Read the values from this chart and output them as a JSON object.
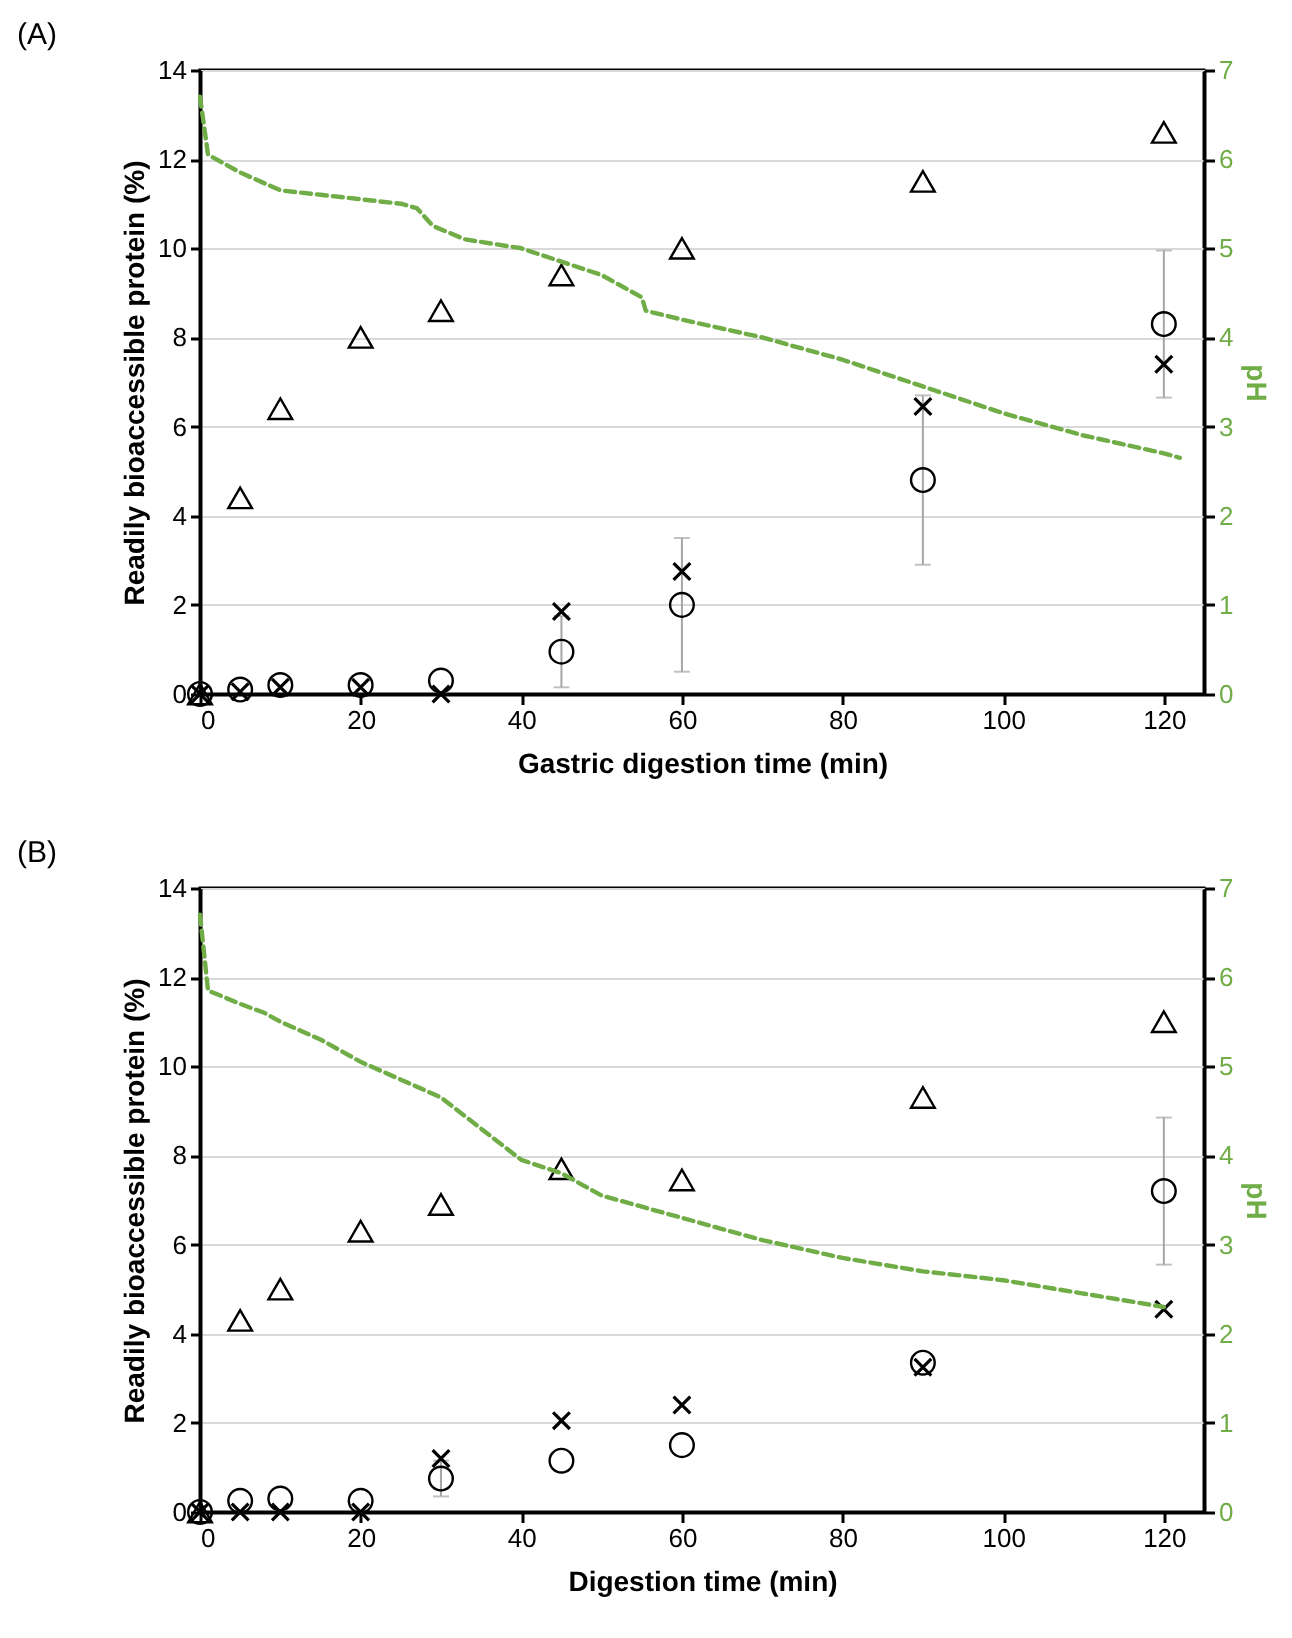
{
  "chart_data": [
    {
      "type": "scatter",
      "title": "(A)",
      "xlabel": "Gastric digestion time (min)",
      "ylabel": "Readily bioaccessible protein (%)",
      "y2label": "pH",
      "xlim": [
        0,
        125
      ],
      "xticks": [
        0,
        20,
        40,
        60,
        80,
        100,
        120
      ],
      "ylim": [
        0,
        14
      ],
      "yticks": [
        0,
        2,
        4,
        6,
        8,
        10,
        12,
        14
      ],
      "y2lim": [
        0,
        7
      ],
      "y2ticks": [
        0,
        1,
        2,
        3,
        4,
        5,
        6,
        7
      ],
      "grid": "y",
      "series": [
        {
          "marker": "triangle",
          "color": "#000000",
          "x": [
            0,
            5,
            10,
            20,
            30,
            45,
            60,
            90,
            120
          ],
          "values": [
            0,
            4.4,
            6.4,
            8.0,
            8.6,
            9.4,
            10.0,
            11.5,
            12.6
          ]
        },
        {
          "marker": "circle",
          "color": "#000000",
          "x": [
            0,
            5,
            10,
            20,
            30,
            45,
            60,
            90,
            120
          ],
          "values": [
            0,
            0.1,
            0.2,
            0.2,
            0.3,
            0.95,
            2.0,
            4.8,
            8.3
          ],
          "errors": [
            null,
            null,
            null,
            null,
            null,
            0.8,
            1.5,
            1.9,
            1.65
          ]
        },
        {
          "marker": "cross",
          "color": "#000000",
          "x": [
            0,
            5,
            10,
            20,
            30,
            45,
            60,
            90,
            120
          ],
          "values": [
            0,
            0.05,
            0.15,
            0.15,
            0,
            1.85,
            2.75,
            6.45,
            7.4
          ]
        },
        {
          "type": "line",
          "axis": "y2",
          "line_style": "dashed",
          "color": "#70ad47",
          "x": [
            0,
            1,
            2,
            5,
            10,
            15,
            20,
            25,
            27,
            29,
            33,
            40,
            45,
            50,
            55,
            55.5,
            60,
            70,
            80,
            90,
            100,
            110,
            120,
            122
          ],
          "values": [
            6.7,
            6.05,
            6.0,
            5.85,
            5.65,
            5.6,
            5.55,
            5.5,
            5.45,
            5.25,
            5.1,
            5.0,
            4.85,
            4.7,
            4.45,
            4.3,
            4.2,
            4.0,
            3.75,
            3.45,
            3.15,
            2.9,
            2.7,
            2.65
          ]
        }
      ]
    },
    {
      "type": "scatter",
      "title": "(B)",
      "xlabel": "Digestion time (min)",
      "ylabel": "Readily bioaccessible protein (%)",
      "y2label": "pH",
      "xlim": [
        0,
        125
      ],
      "xticks": [
        0,
        20,
        40,
        60,
        80,
        100,
        120
      ],
      "ylim": [
        0,
        14
      ],
      "yticks": [
        0,
        2,
        4,
        6,
        8,
        10,
        12,
        14
      ],
      "y2lim": [
        0,
        7
      ],
      "y2ticks": [
        0,
        1,
        2,
        3,
        4,
        5,
        6,
        7
      ],
      "grid": "y",
      "series": [
        {
          "marker": "triangle",
          "color": "#000000",
          "x": [
            0,
            5,
            10,
            20,
            30,
            45,
            60,
            90,
            120
          ],
          "values": [
            0,
            4.3,
            5.0,
            6.3,
            6.9,
            7.7,
            7.45,
            9.3,
            11.0
          ]
        },
        {
          "marker": "circle",
          "color": "#000000",
          "x": [
            0,
            5,
            10,
            20,
            30,
            45,
            60,
            90,
            120
          ],
          "values": [
            0,
            0.25,
            0.3,
            0.25,
            0.75,
            1.15,
            1.5,
            3.35,
            7.2
          ],
          "errors": [
            null,
            null,
            null,
            null,
            0.4,
            null,
            null,
            null,
            1.65
          ]
        },
        {
          "marker": "cross",
          "color": "#000000",
          "x": [
            0,
            5,
            10,
            20,
            30,
            45,
            60,
            90,
            120
          ],
          "values": [
            0,
            0,
            0,
            0,
            1.2,
            2.05,
            2.4,
            3.25,
            4.55
          ]
        },
        {
          "type": "line",
          "axis": "y2",
          "line_style": "dashed",
          "color": "#70ad47",
          "x": [
            0,
            1,
            5,
            8,
            10,
            15,
            20,
            25,
            30,
            35,
            40,
            45,
            50,
            60,
            70,
            80,
            90,
            100,
            110,
            120
          ],
          "values": [
            6.7,
            5.85,
            5.7,
            5.6,
            5.5,
            5.3,
            5.05,
            4.85,
            4.65,
            4.3,
            3.95,
            3.8,
            3.55,
            3.3,
            3.05,
            2.85,
            2.7,
            2.6,
            2.45,
            2.3
          ]
        }
      ]
    }
  ]
}
